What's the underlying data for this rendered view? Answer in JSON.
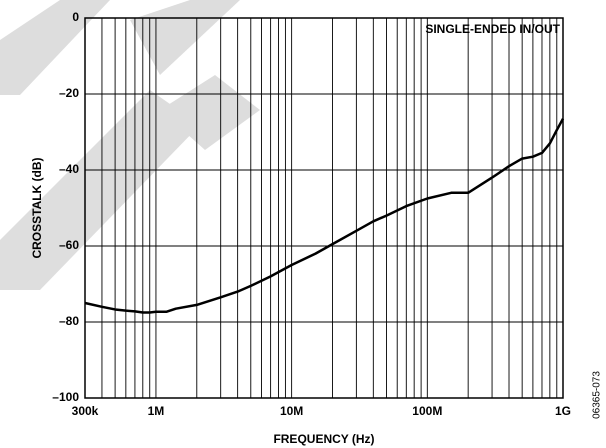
{
  "chart_data": {
    "type": "line",
    "annotation": "SINGLE-ENDED IN/OUT",
    "xlabel": "FREQUENCY (Hz)",
    "ylabel": "CROSSTALK (dB)",
    "figure_id": "06365-073",
    "xscale": "log",
    "grid": true,
    "xlim": [
      300000,
      1000000000
    ],
    "ylim": [
      -100,
      0
    ],
    "xticks": [
      {
        "value": 300000,
        "label": "300k"
      },
      {
        "value": 1000000,
        "label": "1M"
      },
      {
        "value": 10000000,
        "label": "10M"
      },
      {
        "value": 100000000,
        "label": "100M"
      },
      {
        "value": 1000000000,
        "label": "1G"
      }
    ],
    "x_minor_ticks": [
      400000,
      500000,
      600000,
      700000,
      800000,
      900000,
      2000000,
      3000000,
      4000000,
      5000000,
      6000000,
      7000000,
      8000000,
      9000000,
      20000000,
      30000000,
      40000000,
      50000000,
      60000000,
      70000000,
      80000000,
      90000000,
      200000000,
      300000000,
      400000000,
      500000000,
      600000000,
      700000000,
      800000000,
      900000000
    ],
    "yticks": [
      {
        "value": -100,
        "label": "–100"
      },
      {
        "value": -80,
        "label": "–80"
      },
      {
        "value": -60,
        "label": "–60"
      },
      {
        "value": -40,
        "label": "–40"
      },
      {
        "value": -20,
        "label": "–20"
      },
      0
    ],
    "series": [
      {
        "color": "#000000",
        "x": [
          300000,
          400000,
          500000,
          600000,
          700000,
          800000,
          900000,
          1000000,
          1200000,
          1400000,
          2000000,
          3000000,
          4000000,
          5000000,
          7000000,
          10000000,
          15000000,
          20000000,
          30000000,
          40000000,
          50000000,
          70000000,
          100000000,
          150000000,
          200000000,
          300000000,
          400000000,
          500000000,
          600000000,
          700000000,
          800000000,
          900000000,
          1000000000
        ],
        "values": [
          -75,
          -76,
          -76.7,
          -77,
          -77.2,
          -77.5,
          -77.5,
          -77.3,
          -77.3,
          -76.5,
          -75.5,
          -73.5,
          -72,
          -70.5,
          -68,
          -65,
          -62,
          -59.5,
          -56,
          -53.5,
          -52,
          -49.5,
          -47.5,
          -46,
          -46,
          -42,
          -39,
          -37,
          -36.5,
          -35.5,
          -33,
          -29.5,
          -26.5
        ]
      }
    ]
  }
}
